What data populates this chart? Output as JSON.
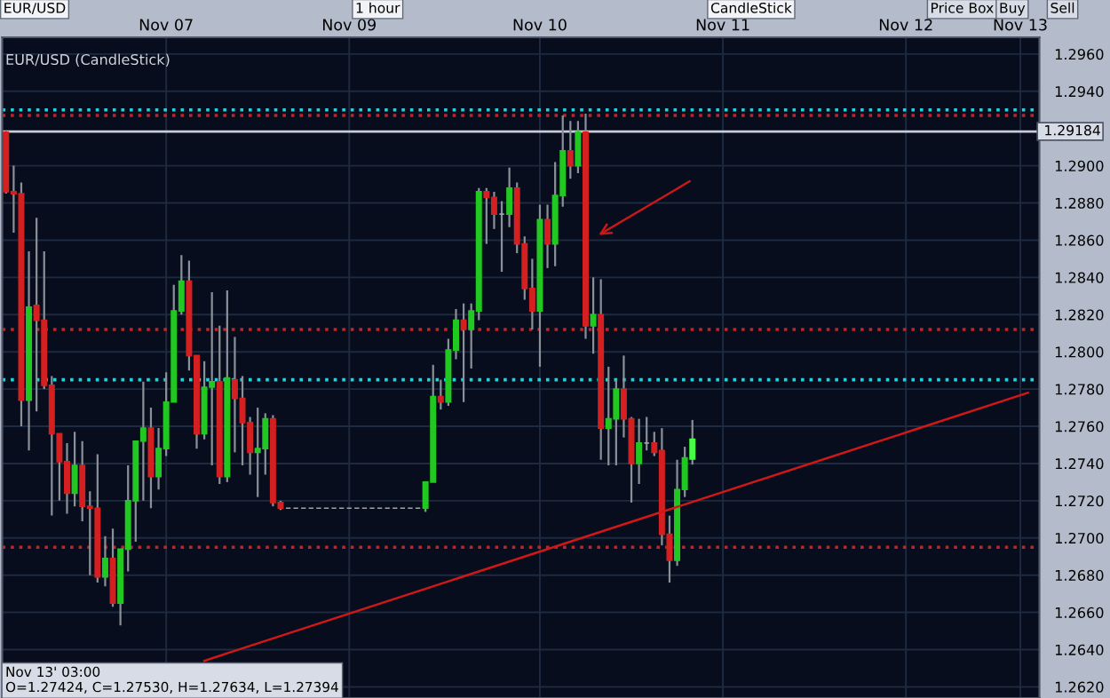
{
  "chart_data": {
    "type": "candlestick",
    "title": "EUR/USD (CandleStick)",
    "categories": [
      null,
      null,
      null,
      null,
      null,
      null,
      null,
      null,
      null,
      null,
      null,
      null,
      null,
      null,
      null,
      null,
      null,
      null,
      null,
      null,
      null,
      "Nov 07",
      null,
      null,
      null,
      null,
      null,
      null,
      null,
      null,
      null,
      null,
      null,
      null,
      null,
      null,
      null,
      null,
      null,
      null,
      null,
      null,
      null,
      null,
      null,
      "Nov 09",
      null,
      null,
      null,
      null,
      null,
      null,
      null,
      null,
      null,
      null,
      null,
      null,
      null,
      null,
      null,
      null,
      null,
      null,
      null,
      null,
      null,
      null,
      null,
      null,
      "Nov 10",
      null,
      null,
      null,
      null,
      null,
      null,
      null,
      null,
      null,
      null,
      null,
      null,
      null,
      null,
      null,
      null,
      null,
      null,
      null,
      null,
      null,
      null,
      null,
      "Nov 11",
      null,
      null,
      null,
      null,
      null,
      null,
      null,
      null,
      null,
      null,
      null,
      null,
      null,
      null,
      null,
      null,
      null,
      null,
      null,
      null,
      null,
      null,
      null,
      "Nov 12",
      null,
      null,
      null,
      null,
      null,
      null,
      null,
      null,
      null,
      null,
      null,
      null,
      null,
      null,
      "Nov 13",
      null,
      null
    ],
    "ohlc": [
      [
        1.2918,
        1.2919,
        1.2885,
        1.2886
      ],
      [
        1.2886,
        1.29,
        1.2864,
        1.2885
      ],
      [
        1.2885,
        1.2891,
        1.276,
        1.2774
      ],
      [
        1.2774,
        1.2854,
        1.2747,
        1.2824
      ],
      [
        1.2825,
        1.2872,
        1.2768,
        1.2817
      ],
      [
        1.2817,
        1.2854,
        1.278,
        1.2782
      ],
      [
        1.2782,
        1.2787,
        1.2712,
        1.2756
      ],
      [
        1.2756,
        1.2756,
        1.272,
        1.2741
      ],
      [
        1.2741,
        1.2751,
        1.2713,
        1.2724
      ],
      [
        1.2724,
        1.2757,
        1.2717,
        1.2739
      ],
      [
        1.2739,
        1.2752,
        1.2709,
        1.2717
      ],
      [
        1.2717,
        1.2725,
        1.268,
        1.2716
      ],
      [
        1.2716,
        1.2745,
        1.2676,
        1.2679
      ],
      [
        1.2679,
        1.2701,
        1.2674,
        1.2689
      ],
      [
        1.2689,
        1.2705,
        1.2663,
        1.2665
      ],
      [
        1.2665,
        1.2694,
        1.2653,
        1.2694
      ],
      [
        1.2694,
        1.2739,
        1.2682,
        1.272
      ],
      [
        1.272,
        1.2752,
        1.2698,
        1.2752
      ],
      [
        1.2752,
        1.2784,
        1.272,
        1.2759
      ],
      [
        1.2759,
        1.277,
        1.2716,
        1.2733
      ],
      [
        1.2733,
        1.2759,
        1.2726,
        1.2748
      ],
      [
        1.2748,
        1.2789,
        1.2744,
        1.2773
      ],
      [
        1.2773,
        1.2836,
        1.2773,
        1.2822
      ],
      [
        1.2822,
        1.2852,
        1.282,
        1.2838
      ],
      [
        1.2838,
        1.2849,
        1.279,
        1.2798
      ],
      [
        1.2798,
        1.2798,
        1.2748,
        1.2756
      ],
      [
        1.2756,
        1.2795,
        1.2753,
        1.2781
      ],
      [
        1.2781,
        1.2832,
        1.2739,
        1.2784
      ],
      [
        1.2784,
        1.2814,
        1.2729,
        1.2733
      ],
      [
        1.2733,
        1.2833,
        1.273,
        1.2786
      ],
      [
        1.2785,
        1.2808,
        1.2746,
        1.2775
      ],
      [
        1.2775,
        1.2787,
        1.2739,
        1.2762
      ],
      [
        1.2762,
        1.2765,
        1.2734,
        1.2746
      ],
      [
        1.2746,
        1.277,
        1.2722,
        1.2748
      ],
      [
        1.2748,
        1.2767,
        1.2734,
        1.2764
      ],
      [
        1.2764,
        1.2766,
        1.2717,
        1.2719
      ],
      [
        1.2719,
        1.272,
        1.2715,
        1.2716
      ],
      [
        1.2716,
        1.2716,
        1.2716,
        1.2716
      ],
      [
        1.2716,
        1.2716,
        1.2716,
        1.2716
      ],
      [
        1.2716,
        1.2716,
        1.2716,
        1.2716
      ],
      [
        1.2716,
        1.2716,
        1.2716,
        1.2716
      ],
      [
        1.2716,
        1.2716,
        1.2716,
        1.2716
      ],
      [
        1.2716,
        1.2716,
        1.2716,
        1.2716
      ],
      [
        1.2716,
        1.2716,
        1.2716,
        1.2716
      ],
      [
        1.2716,
        1.2716,
        1.2716,
        1.2716
      ],
      [
        1.2716,
        1.2716,
        1.2716,
        1.2716
      ],
      [
        1.2716,
        1.2716,
        1.2716,
        1.2716
      ],
      [
        1.2716,
        1.2716,
        1.2716,
        1.2716
      ],
      [
        1.2716,
        1.2716,
        1.2716,
        1.2716
      ],
      [
        1.2716,
        1.2716,
        1.2716,
        1.2716
      ],
      [
        1.2716,
        1.2716,
        1.2716,
        1.2716
      ],
      [
        1.2716,
        1.2716,
        1.2716,
        1.2716
      ],
      [
        1.2716,
        1.2716,
        1.2716,
        1.2716
      ],
      [
        1.2716,
        1.2716,
        1.2716,
        1.2716
      ],
      [
        1.2716,
        1.2716,
        1.2716,
        1.2716
      ],
      [
        1.2716,
        1.273,
        1.2714,
        1.273
      ],
      [
        1.273,
        1.2793,
        1.273,
        1.2776
      ],
      [
        1.2776,
        1.2785,
        1.2769,
        1.2773
      ],
      [
        1.2773,
        1.2807,
        1.2771,
        1.2801
      ],
      [
        1.2801,
        1.2823,
        1.2796,
        1.2817
      ],
      [
        1.2817,
        1.2826,
        1.2773,
        1.2812
      ],
      [
        1.2812,
        1.2826,
        1.2791,
        1.2822
      ],
      [
        1.2822,
        1.2888,
        1.2817,
        1.2886
      ],
      [
        1.2886,
        1.2888,
        1.2858,
        1.2883
      ],
      [
        1.2883,
        1.2886,
        1.2866,
        1.2874
      ],
      [
        1.2874,
        1.2881,
        1.2843,
        1.2874
      ],
      [
        1.2874,
        1.2899,
        1.2867,
        1.2888
      ],
      [
        1.2888,
        1.2891,
        1.2853,
        1.2858
      ],
      [
        1.2858,
        1.2862,
        1.2828,
        1.2834
      ],
      [
        1.2834,
        1.285,
        1.2812,
        1.2822
      ],
      [
        1.2822,
        1.2879,
        1.2792,
        1.2871
      ],
      [
        1.2871,
        1.2879,
        1.2845,
        1.2858
      ],
      [
        1.2858,
        1.2902,
        1.2846,
        1.2884
      ],
      [
        1.2884,
        1.2927,
        1.2878,
        1.2908
      ],
      [
        1.2908,
        1.2924,
        1.2893,
        1.29
      ],
      [
        1.29,
        1.2924,
        1.2896,
        1.2918
      ],
      [
        1.2918,
        1.2928,
        1.2807,
        1.2814
      ],
      [
        1.2814,
        1.284,
        1.2799,
        1.282
      ],
      [
        1.282,
        1.2839,
        1.2742,
        1.2759
      ],
      [
        1.2759,
        1.2792,
        1.2739,
        1.2764
      ],
      [
        1.2764,
        1.2785,
        1.2739,
        1.278
      ],
      [
        1.278,
        1.2798,
        1.2754,
        1.2764
      ],
      [
        1.2764,
        1.2765,
        1.2719,
        1.274
      ],
      [
        1.274,
        1.2764,
        1.2729,
        1.2751
      ],
      [
        1.2751,
        1.2765,
        1.2747,
        1.2751
      ],
      [
        1.2751,
        1.2757,
        1.2744,
        1.2746
      ],
      [
        1.2747,
        1.2759,
        1.2696,
        1.2702
      ],
      [
        1.2702,
        1.2712,
        1.2676,
        1.2688
      ],
      [
        1.2688,
        1.2742,
        1.2685,
        1.2726
      ],
      [
        1.2726,
        1.2749,
        1.2722,
        1.2743
      ],
      [
        1.27424,
        1.27634,
        1.27394,
        1.2753
      ],
      null,
      null,
      null,
      null,
      null,
      null,
      null,
      null,
      null,
      null,
      null,
      null,
      null,
      null,
      null,
      null,
      null,
      null,
      null,
      null,
      null,
      null,
      null,
      null,
      null,
      null,
      null,
      null,
      null,
      null,
      null,
      null,
      null,
      null,
      null,
      null,
      null,
      null,
      null,
      null,
      null,
      null,
      null,
      null,
      null
    ],
    "colors": [
      "#d42020",
      "#d42020",
      "#d42020",
      "#22c822",
      "#d42020",
      "#d42020",
      "#d42020",
      "#d42020",
      "#d42020",
      "#22c822",
      "#d42020",
      "#d42020",
      "#d42020",
      "#22c822",
      "#d42020",
      "#22c822",
      "#22c822",
      "#22c822",
      "#22c822",
      "#d42020",
      "#22c822",
      "#22c822",
      "#22c822",
      "#22c822",
      "#d42020",
      "#d42020",
      "#22c822",
      "#22c822",
      "#d42020",
      "#22c822",
      "#d42020",
      "#d42020",
      "#d42020",
      "#22c822",
      "#22c822",
      "#d42020",
      "#d42020",
      "#a0a4a8",
      "#a0a4a8",
      "#a0a4a8",
      "#a0a4a8",
      "#a0a4a8",
      "#a0a4a8",
      "#a0a4a8",
      "#a0a4a8",
      "#a0a4a8",
      "#a0a4a8",
      "#a0a4a8",
      "#a0a4a8",
      "#a0a4a8",
      "#a0a4a8",
      "#a0a4a8",
      "#a0a4a8",
      "#a0a4a8",
      "#a0a4a8",
      "#22c822",
      "#22c822",
      "#d42020",
      "#22c822",
      "#22c822",
      "#d42020",
      "#22c822",
      "#22c822",
      "#d42020",
      "#d42020",
      "#a0a4a8",
      "#22c822",
      "#d42020",
      "#d42020",
      "#d42020",
      "#22c822",
      "#d42020",
      "#22c822",
      "#22c822",
      "#d42020",
      "#22c822",
      "#d42020",
      "#22c822",
      "#d42020",
      "#22c822",
      "#22c822",
      "#d42020",
      "#d42020",
      "#22c822",
      "#a0a4a8",
      "#d42020",
      "#d42020",
      "#d42020",
      "#22c822",
      "#22c822",
      "#44ff44",
      null,
      null,
      null,
      null,
      null,
      null,
      null,
      null,
      null,
      null,
      null,
      null,
      null,
      null,
      null,
      null,
      null,
      null,
      null,
      null,
      null,
      null,
      null,
      null,
      null,
      null,
      null,
      null,
      null,
      null,
      null,
      null,
      null,
      null,
      null,
      null,
      null,
      null,
      null,
      null,
      null,
      null,
      null,
      null,
      null
    ],
    "series": [
      {
        "type": "line",
        "color": "#d01818",
        "values": [
          null,
          null,
          null,
          null,
          null,
          null,
          null,
          null,
          null,
          null,
          null,
          null,
          null,
          null,
          null,
          null,
          null,
          null,
          null,
          null,
          null,
          null,
          null,
          null,
          null,
          null,
          1.2634,
          null,
          null,
          null,
          null,
          null,
          null,
          null,
          null,
          null,
          null,
          null,
          null,
          null,
          null,
          null,
          null,
          null,
          null,
          null,
          null,
          null,
          null,
          null,
          null,
          null,
          null,
          null,
          null,
          null,
          null,
          null,
          null,
          null,
          null,
          null,
          null,
          null,
          null,
          null,
          null,
          null,
          null,
          null,
          null,
          null,
          null,
          null,
          null,
          null,
          null,
          null,
          null,
          null,
          null,
          null,
          null,
          null,
          null,
          null,
          null,
          null,
          null,
          null,
          null,
          null,
          null,
          null,
          null,
          null,
          null,
          null,
          null,
          null,
          null,
          null,
          null,
          null,
          null,
          null,
          null,
          null,
          null,
          null,
          null,
          null,
          null,
          null,
          null,
          null,
          null,
          null,
          null,
          null,
          null,
          null,
          null,
          null,
          null,
          null,
          null,
          null,
          null,
          null,
          null,
          null,
          null,
          null,
          1.2778,
          null
        ]
      }
    ],
    "ylim": [
      1.2614,
      1.2969
    ],
    "yticks": [
      {
        "value": 1.262,
        "label": "1.2620"
      },
      {
        "value": 1.264,
        "label": "1.2640"
      },
      {
        "value": 1.266,
        "label": "1.2660"
      },
      {
        "value": 1.268,
        "label": "1.2680"
      },
      {
        "value": 1.27,
        "label": "1.2700"
      },
      {
        "value": 1.272,
        "label": "1.2720"
      },
      {
        "value": 1.274,
        "label": "1.2740"
      },
      {
        "value": 1.276,
        "label": "1.2760"
      },
      {
        "value": 1.278,
        "label": "1.2780"
      },
      {
        "value": 1.28,
        "label": "1.2800"
      },
      {
        "value": 1.282,
        "label": "1.2820"
      },
      {
        "value": 1.284,
        "label": "1.2840"
      },
      {
        "value": 1.286,
        "label": "1.2860"
      },
      {
        "value": 1.288,
        "label": "1.2880"
      },
      {
        "value": 1.29,
        "label": "1.2900"
      },
      {
        "value": 1.294,
        "label": "1.2940"
      },
      {
        "value": 1.296,
        "label": "1.2960"
      }
    ],
    "grid": true,
    "ref_lines": [
      {
        "axis": "y",
        "value": 1.293,
        "color": "#28d0dc",
        "line_style": "dotted"
      },
      {
        "axis": "y",
        "value": 1.2927,
        "color": "#c02428",
        "line_style": "dotted"
      },
      {
        "axis": "y",
        "value": 1.29184,
        "label": "1.29184",
        "color": "#c8ccd8",
        "line_style": "solid"
      },
      {
        "axis": "y",
        "value": 1.2812,
        "color": "#c02428",
        "line_style": "dotted"
      },
      {
        "axis": "y",
        "value": 1.2785,
        "color": "#28d0dc",
        "line_style": "dotted"
      },
      {
        "axis": "y",
        "value": 1.2695,
        "color": "#c02428",
        "line_style": "dotted"
      }
    ],
    "annotations": [
      "EUR/USD",
      "1 hour",
      "CandleStick",
      "Price Box",
      "Buy",
      "Sell",
      "Nov 13' 03:00",
      "O=1.27424, C=1.27530, H=1.27634, L=1.27394"
    ]
  }
}
